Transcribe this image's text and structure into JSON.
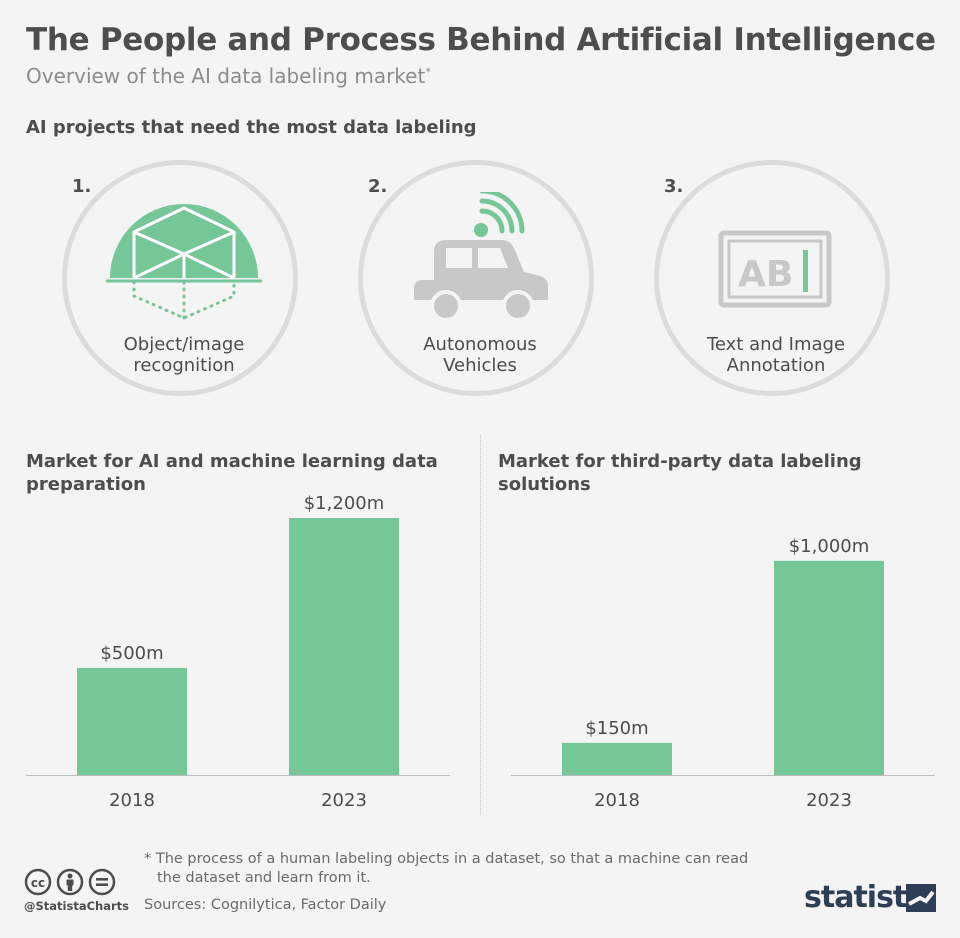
{
  "header": {
    "title": "The People and Process Behind Artificial Intelligence",
    "subtitle": "Overview of the AI data labeling market",
    "subtitle_marker": "*"
  },
  "projects": {
    "heading": "AI projects that need the most data labeling",
    "items": [
      {
        "rank": "1.",
        "label_line1": "Object/image",
        "label_line2": "recognition",
        "icon": "3d-box-scan-icon"
      },
      {
        "rank": "2.",
        "label_line1": "Autonomous",
        "label_line2": "Vehicles",
        "icon": "connected-car-icon"
      },
      {
        "rank": "3.",
        "label_line1": "Text and Image",
        "label_line2": "Annotation",
        "icon": "text-annotation-icon",
        "icon_text": "AB"
      }
    ]
  },
  "colors": {
    "bar": "#76c797",
    "accent": "#76c797",
    "icon_gray": "#c8c8c8",
    "background": "#f4f4f4",
    "text": "#4d4d4d"
  },
  "chart_data": [
    {
      "type": "bar",
      "title_line1": "Market for AI and machine learning data",
      "title_line2": "preparation",
      "categories": [
        "2018",
        "2023"
      ],
      "values": [
        500,
        1200
      ],
      "value_labels": [
        "$500m",
        "$1,200m"
      ],
      "ylim": [
        0,
        1200
      ],
      "grid": false
    },
    {
      "type": "bar",
      "title_line1": "Market for third-party data labeling solutions",
      "title_line2": "",
      "categories": [
        "2018",
        "2023"
      ],
      "values": [
        150,
        1000
      ],
      "value_labels": [
        "$150m",
        "$1,000m"
      ],
      "ylim": [
        0,
        1200
      ],
      "grid": false
    }
  ],
  "footer": {
    "footnote_line1": "* The process of a human labeling objects in a dataset, so that a machine can read",
    "footnote_line2": "the dataset and learn from it.",
    "sources": "Sources: Cognilytica, Factor Daily",
    "handle": "@StatistaCharts",
    "brand": "statista"
  }
}
